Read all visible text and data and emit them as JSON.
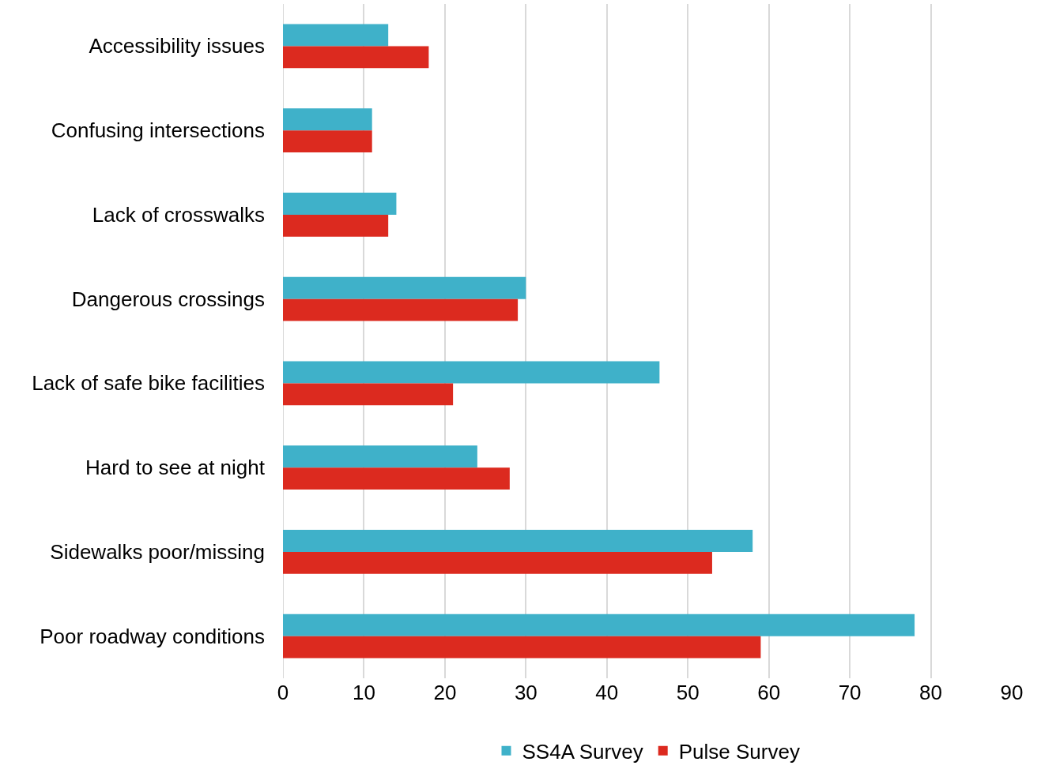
{
  "chart_data": {
    "type": "bar",
    "orientation": "horizontal",
    "categories": [
      "Accessibility issues",
      "Confusing intersections",
      "Lack of crosswalks",
      "Dangerous crossings",
      "Lack of safe bike facilities",
      "Hard to see at night",
      "Sidewalks poor/missing",
      "Poor roadway conditions"
    ],
    "series": [
      {
        "name": "SS4A Survey",
        "color": "#3fb1c9",
        "values": [
          13,
          11,
          14,
          30,
          46.5,
          24,
          58,
          78
        ]
      },
      {
        "name": "Pulse Survey",
        "color": "#dc2a1f",
        "values": [
          18,
          11,
          13,
          29,
          21,
          28,
          53,
          59
        ]
      }
    ],
    "xlim": [
      0,
      90
    ],
    "xticks": [
      0,
      10,
      20,
      30,
      40,
      50,
      60,
      70,
      80,
      90
    ],
    "grid": "x",
    "legend": "bottom"
  }
}
